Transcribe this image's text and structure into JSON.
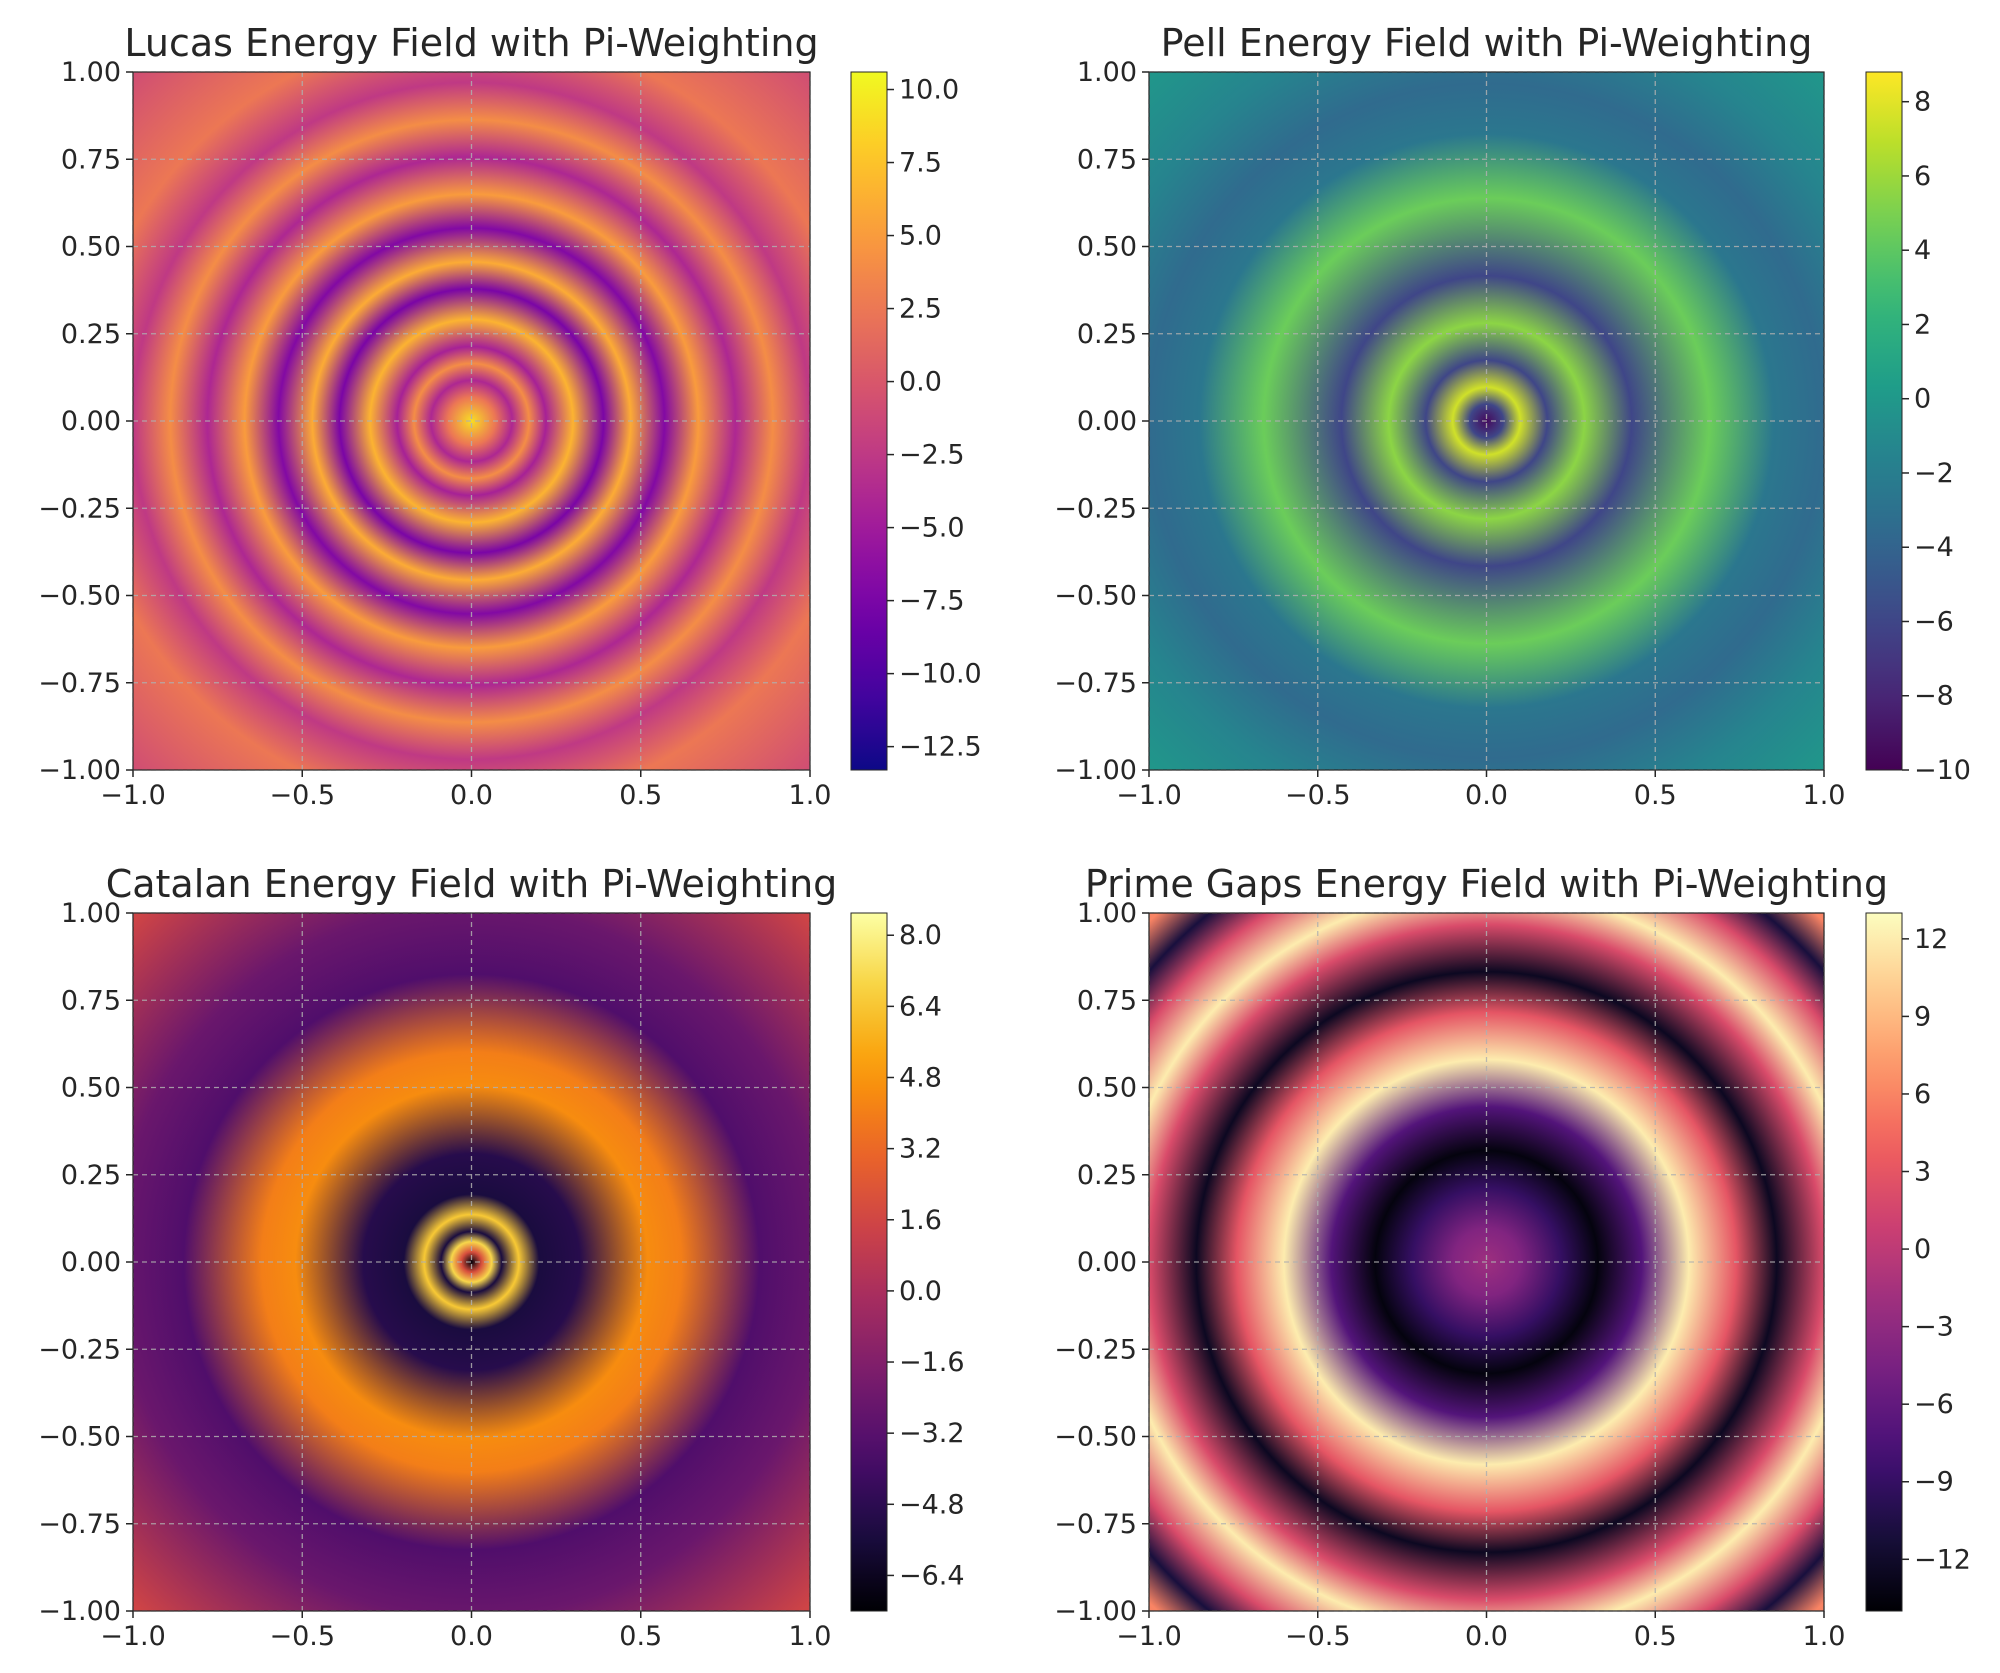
{
  "chart_data": [
    {
      "type": "heatmap",
      "title": "Lucas Energy Field with Pi-Weighting",
      "xlabel": "",
      "ylabel": "",
      "xlim": [
        -1.0,
        1.0
      ],
      "ylim": [
        -1.0,
        1.0
      ],
      "x_ticks": [
        "−1.0",
        "−0.5",
        "0.0",
        "0.5",
        "1.0"
      ],
      "y_ticks": [
        "1.00",
        "0.75",
        "0.50",
        "0.25",
        "0.00",
        "−0.25",
        "−0.50",
        "−0.75",
        "−1.00"
      ],
      "grid": true,
      "colormap": "plasma",
      "colorbar": {
        "range": [
          -13.3,
          10.6
        ],
        "ticks": [
          {
            "value": 10.0,
            "label": "10.0"
          },
          {
            "value": 7.5,
            "label": "7.5"
          },
          {
            "value": 5.0,
            "label": "5.0"
          },
          {
            "value": 2.5,
            "label": "2.5"
          },
          {
            "value": 0.0,
            "label": "0.0"
          },
          {
            "value": -2.5,
            "label": "−2.5"
          },
          {
            "value": -5.0,
            "label": "−5.0"
          },
          {
            "value": -7.5,
            "label": "−7.5"
          },
          {
            "value": -10.0,
            "label": "−10.0"
          },
          {
            "value": -12.5,
            "label": "−12.5"
          }
        ]
      },
      "field": {
        "form": "concentric rings",
        "rings": [
          {
            "radius": 0.0,
            "value": 9.0
          },
          {
            "radius": 0.07,
            "value": 2.5
          },
          {
            "radius": 0.12,
            "value": -4.0
          },
          {
            "radius": 0.17,
            "value": 4.0
          },
          {
            "radius": 0.22,
            "value": -4.5
          },
          {
            "radius": 0.3,
            "value": 6.5
          },
          {
            "radius": 0.39,
            "value": -7.5
          },
          {
            "radius": 0.47,
            "value": 6.0
          },
          {
            "radius": 0.57,
            "value": -7.0
          },
          {
            "radius": 0.67,
            "value": 5.0
          },
          {
            "radius": 0.78,
            "value": -4.0
          },
          {
            "radius": 0.89,
            "value": 4.0
          },
          {
            "radius": 1.0,
            "value": -2.5
          },
          {
            "radius": 1.15,
            "value": 2.5
          },
          {
            "radius": 1.45,
            "value": -1.0
          }
        ]
      }
    },
    {
      "type": "heatmap",
      "title": "Pell Energy Field with Pi-Weighting",
      "xlabel": "",
      "ylabel": "",
      "xlim": [
        -1.0,
        1.0
      ],
      "ylim": [
        -1.0,
        1.0
      ],
      "x_ticks": [
        "−1.0",
        "−0.5",
        "0.0",
        "0.5",
        "1.0"
      ],
      "y_ticks": [
        "1.00",
        "0.75",
        "0.50",
        "0.25",
        "0.00",
        "−0.25",
        "−0.50",
        "−0.75",
        "−1.00"
      ],
      "grid": true,
      "colormap": "viridis",
      "colorbar": {
        "range": [
          -10.0,
          8.8
        ],
        "ticks": [
          {
            "value": 8,
            "label": "8"
          },
          {
            "value": 6,
            "label": "6"
          },
          {
            "value": 4,
            "label": "4"
          },
          {
            "value": 2,
            "label": "2"
          },
          {
            "value": 0,
            "label": "0"
          },
          {
            "value": -2,
            "label": "−2"
          },
          {
            "value": -4,
            "label": "−4"
          },
          {
            "value": -6,
            "label": "−6"
          },
          {
            "value": -8,
            "label": "−8"
          },
          {
            "value": -10,
            "label": "−10"
          }
        ]
      },
      "field": {
        "form": "concentric rings",
        "rings": [
          {
            "radius": 0.0,
            "value": -9.5
          },
          {
            "radius": 0.05,
            "value": -6.0
          },
          {
            "radius": 0.1,
            "value": 7.5
          },
          {
            "radius": 0.18,
            "value": -6.0
          },
          {
            "radius": 0.29,
            "value": 5.5
          },
          {
            "radius": 0.43,
            "value": -6.0
          },
          {
            "radius": 0.66,
            "value": 4.5
          },
          {
            "radius": 0.85,
            "value": -2.5
          },
          {
            "radius": 1.0,
            "value": -3.5
          },
          {
            "radius": 1.2,
            "value": -1.5
          },
          {
            "radius": 1.45,
            "value": 0.0
          }
        ]
      }
    },
    {
      "type": "heatmap",
      "title": "Catalan Energy Field with Pi-Weighting",
      "xlabel": "",
      "ylabel": "",
      "xlim": [
        -1.0,
        1.0
      ],
      "ylim": [
        -1.0,
        1.0
      ],
      "x_ticks": [
        "−1.0",
        "−0.5",
        "0.0",
        "0.5",
        "1.0"
      ],
      "y_ticks": [
        "1.00",
        "0.75",
        "0.50",
        "0.25",
        "0.00",
        "−0.25",
        "−0.50",
        "−0.75",
        "−1.00"
      ],
      "grid": true,
      "colormap": "inferno",
      "colorbar": {
        "range": [
          -7.2,
          8.5
        ],
        "ticks": [
          {
            "value": 8.0,
            "label": "8.0"
          },
          {
            "value": 6.4,
            "label": "6.4"
          },
          {
            "value": 4.8,
            "label": "4.8"
          },
          {
            "value": 3.2,
            "label": "3.2"
          },
          {
            "value": 1.6,
            "label": "1.6"
          },
          {
            "value": 0.0,
            "label": "0.0"
          },
          {
            "value": -1.6,
            "label": "−1.6"
          },
          {
            "value": -3.2,
            "label": "−3.2"
          },
          {
            "value": -4.8,
            "label": "−4.8"
          },
          {
            "value": -6.4,
            "label": "−6.4"
          }
        ]
      },
      "field": {
        "form": "concentric rings",
        "rings": [
          {
            "radius": 0.0,
            "value": -7.0
          },
          {
            "radius": 0.03,
            "value": 2.0
          },
          {
            "radius": 0.06,
            "value": 7.0
          },
          {
            "radius": 0.09,
            "value": -5.5
          },
          {
            "radius": 0.14,
            "value": 6.5
          },
          {
            "radius": 0.2,
            "value": -5.5
          },
          {
            "radius": 0.32,
            "value": -5.0
          },
          {
            "radius": 0.52,
            "value": 4.5
          },
          {
            "radius": 0.62,
            "value": 4.0
          },
          {
            "radius": 0.85,
            "value": -3.5
          },
          {
            "radius": 1.05,
            "value": -2.5
          },
          {
            "radius": 1.42,
            "value": 1.5
          }
        ]
      }
    },
    {
      "type": "heatmap",
      "title": "Prime Gaps Energy Field with Pi-Weighting",
      "xlabel": "",
      "ylabel": "",
      "xlim": [
        -1.0,
        1.0
      ],
      "ylim": [
        -1.0,
        1.0
      ],
      "x_ticks": [
        "−1.0",
        "−0.5",
        "0.0",
        "0.5",
        "1.0"
      ],
      "y_ticks": [
        "1.00",
        "0.75",
        "0.50",
        "0.25",
        "0.00",
        "−0.25",
        "−0.50",
        "−0.75",
        "−1.00"
      ],
      "grid": true,
      "colormap": "magma",
      "colorbar": {
        "range": [
          -14.0,
          13.0
        ],
        "ticks": [
          {
            "value": 12,
            "label": "12"
          },
          {
            "value": 9,
            "label": "9"
          },
          {
            "value": 6,
            "label": "6"
          },
          {
            "value": 3,
            "label": "3"
          },
          {
            "value": 0,
            "label": "0"
          },
          {
            "value": -3,
            "label": "−3"
          },
          {
            "value": -6,
            "label": "−6"
          },
          {
            "value": -9,
            "label": "−9"
          },
          {
            "value": -12,
            "label": "−12"
          }
        ]
      },
      "field": {
        "form": "concentric rings",
        "rings": [
          {
            "radius": 0.0,
            "value": -2.0
          },
          {
            "radius": 0.1,
            "value": -4.0
          },
          {
            "radius": 0.22,
            "value": -9.0
          },
          {
            "radius": 0.33,
            "value": -13.5
          },
          {
            "radius": 0.46,
            "value": -7.0
          },
          {
            "radius": 0.6,
            "value": 12.0
          },
          {
            "radius": 0.74,
            "value": 3.0
          },
          {
            "radius": 0.86,
            "value": -12.5
          },
          {
            "radius": 1.0,
            "value": 2.0
          },
          {
            "radius": 1.1,
            "value": 12.0
          },
          {
            "radius": 1.22,
            "value": 2.0
          },
          {
            "radius": 1.32,
            "value": -11.0
          },
          {
            "radius": 1.42,
            "value": 6.0
          }
        ]
      }
    }
  ]
}
